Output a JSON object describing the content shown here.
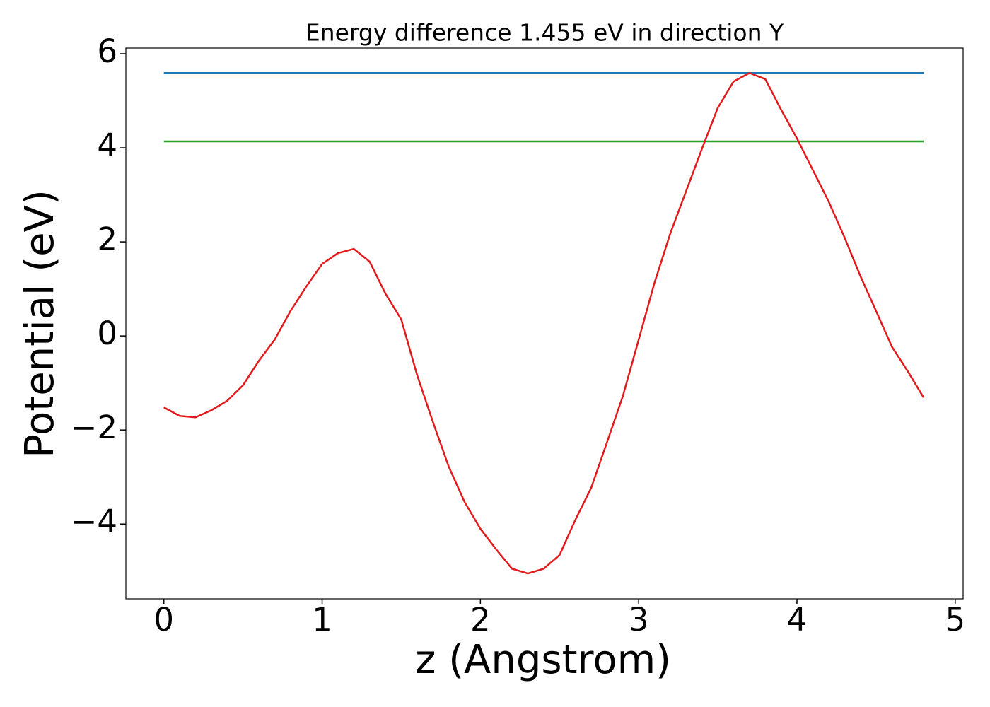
{
  "chart_data": {
    "type": "line",
    "title": "Energy difference 1.455 eV in direction Y",
    "xlabel": "z (Angstrom)",
    "ylabel": "Potential (eV)",
    "series": [
      {
        "color": "#1f77b4",
        "x": [
          0,
          4.8
        ],
        "values": [
          5.59,
          5.59
        ]
      },
      {
        "color": "#2ca02c",
        "x": [
          0,
          4.8
        ],
        "values": [
          4.135,
          4.135
        ]
      },
      {
        "color": "#e31a1c",
        "x": [
          0,
          0.1,
          0.2,
          0.3,
          0.4,
          0.5,
          0.6,
          0.7,
          0.8,
          0.9,
          1.0,
          1.1,
          1.2,
          1.3,
          1.4,
          1.5,
          1.6,
          1.7,
          1.8,
          1.9,
          2.0,
          2.1,
          2.2,
          2.3,
          2.4,
          2.5,
          2.6,
          2.7,
          2.8,
          2.9,
          3.0,
          3.1,
          3.2,
          3.3,
          3.4,
          3.5,
          3.6,
          3.7,
          3.8,
          3.9,
          4.0,
          4.1,
          4.2,
          4.3,
          4.4,
          4.5,
          4.6,
          4.7,
          4.8
        ],
        "values": [
          -1.52,
          -1.7,
          -1.73,
          -1.58,
          -1.38,
          -1.05,
          -0.53,
          -0.08,
          0.53,
          1.05,
          1.53,
          1.76,
          1.85,
          1.58,
          0.9,
          0.35,
          -0.83,
          -1.83,
          -2.78,
          -3.53,
          -4.1,
          -4.54,
          -4.95,
          -5.05,
          -4.95,
          -4.66,
          -3.91,
          -3.23,
          -2.26,
          -1.28,
          -0.08,
          1.13,
          2.18,
          3.08,
          3.98,
          4.85,
          5.41,
          5.59,
          5.46,
          4.81,
          4.2,
          3.53,
          2.86,
          2.1,
          1.28,
          0.53,
          -0.23,
          -0.75,
          -1.31
        ]
      }
    ],
    "xlim": [
      -0.24,
      5.05
    ],
    "xticks": [
      0,
      1,
      2,
      3,
      4,
      5
    ],
    "ylim": [
      -5.59,
      6.12
    ],
    "yticks": [
      {
        "value": -4,
        "label": "−4"
      },
      {
        "value": -2,
        "label": "−2"
      },
      0,
      2,
      4,
      6
    ]
  }
}
